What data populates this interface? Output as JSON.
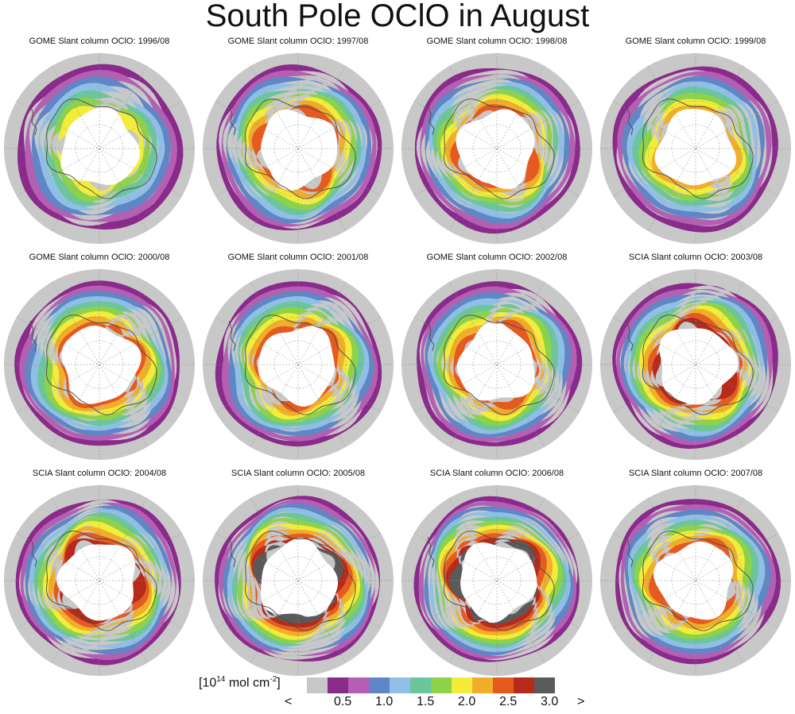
{
  "title": "South Pole OClO in August",
  "panels": [
    {
      "label": "GOME Slant column OClO: 1996/08",
      "intensity": 0.6
    },
    {
      "label": "GOME Slant column OClO: 1997/08",
      "intensity": 0.8
    },
    {
      "label": "GOME Slant column OClO: 1998/08",
      "intensity": 0.85
    },
    {
      "label": "GOME Slant column OClO: 1999/08",
      "intensity": 0.75
    },
    {
      "label": "GOME Slant column OClO: 2000/08",
      "intensity": 0.85
    },
    {
      "label": "GOME Slant column OClO: 2001/08",
      "intensity": 0.85
    },
    {
      "label": "GOME Slant column OClO: 2002/08",
      "intensity": 0.8
    },
    {
      "label": "SCIA Slant column OClO: 2003/08",
      "intensity": 0.95
    },
    {
      "label": "SCIA Slant column OClO: 2004/08",
      "intensity": 0.95
    },
    {
      "label": "SCIA Slant column OClO: 2005/08",
      "intensity": 1.0
    },
    {
      "label": "SCIA Slant column OClO: 2006/08",
      "intensity": 1.0
    },
    {
      "label": "SCIA Slant column OClO: 2007/08",
      "intensity": 0.8
    }
  ],
  "legend": {
    "unit_prefix": "[10",
    "unit_exp": "14",
    "unit_mid": " mol cm",
    "unit_exp2": "-2",
    "unit_suffix": "]",
    "less_symbol": "<",
    "greater_symbol": ">",
    "tick_labels": [
      "0.5",
      "1.0",
      "1.5",
      "2.0",
      "2.5",
      "3.0"
    ],
    "colors": [
      "#c8c8c8",
      "#8a2a8a",
      "#b45fb4",
      "#5f86c6",
      "#8fbfe6",
      "#6cc59b",
      "#8ed24a",
      "#f2ec3a",
      "#f1ae2a",
      "#e55a1e",
      "#b52a1a",
      "#5a5a5a"
    ]
  },
  "colors": {
    "background_disk": "#c8c8c8",
    "coastline": "#4a4a4a",
    "graticule": "#8a8a8a",
    "no_data": "#ffffff"
  }
}
